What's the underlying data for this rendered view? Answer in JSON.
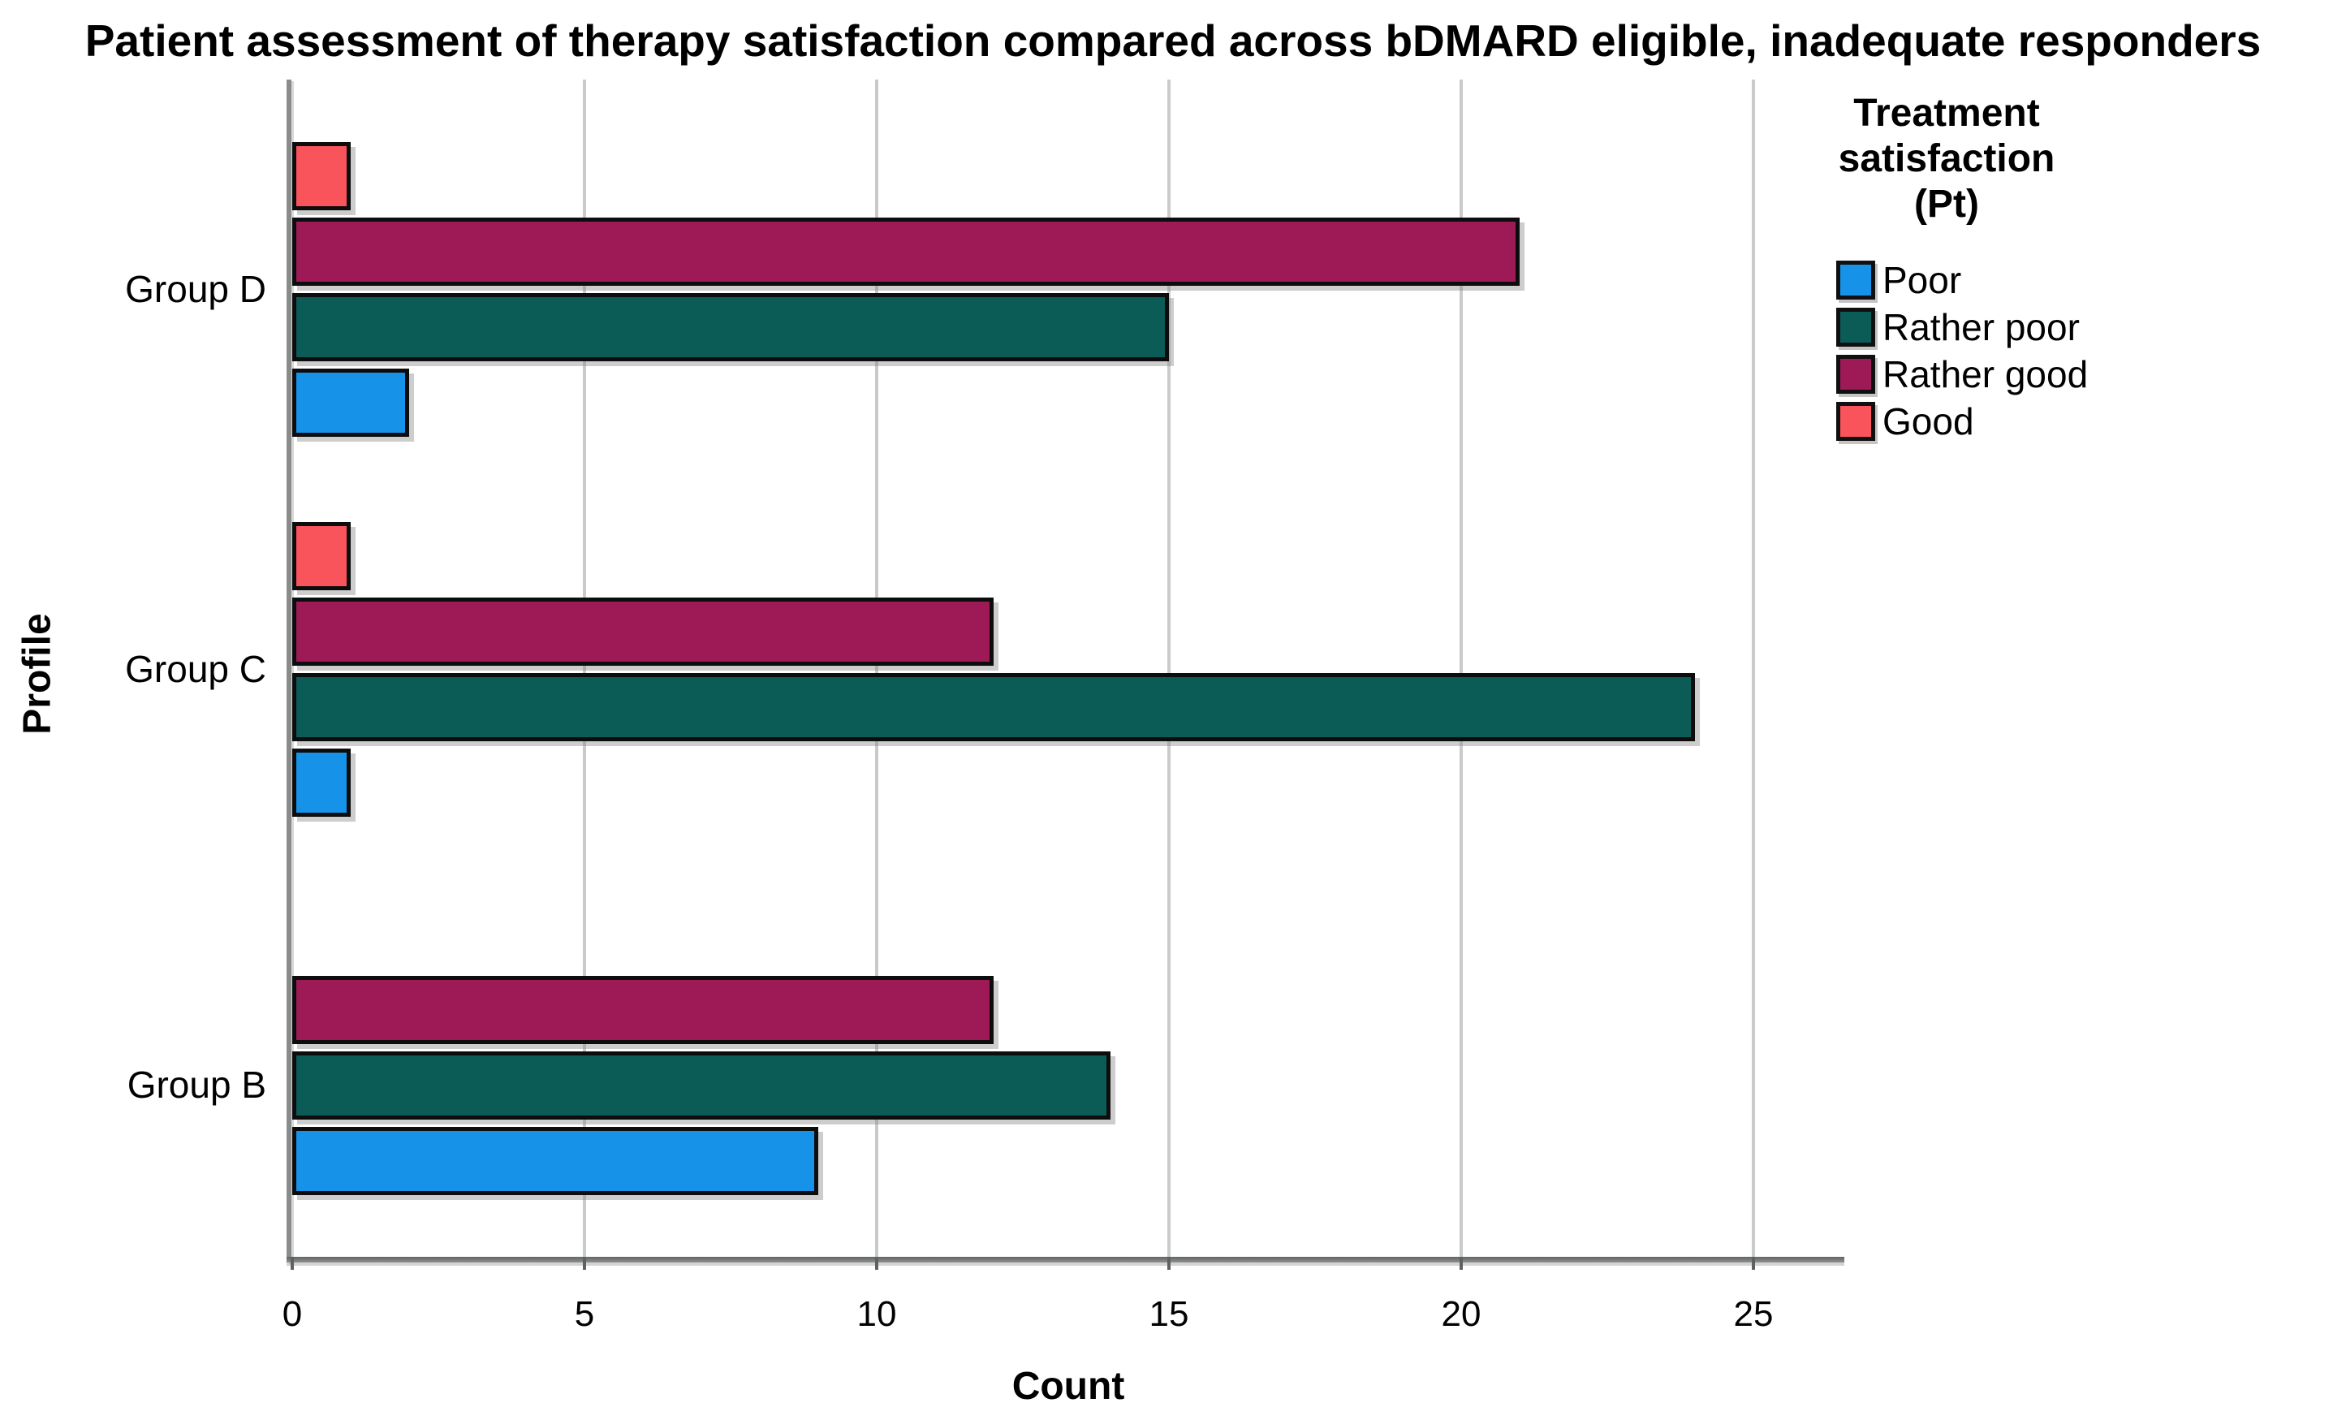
{
  "title": "Patient assessment of therapy satisfaction compared across bDMARD eligible, inadequate responders",
  "legend": {
    "title_lines": [
      "Treatment",
      "satisfaction",
      "(Pt)"
    ]
  },
  "chart_data": {
    "type": "bar",
    "orientation": "horizontal",
    "title": "Patient assessment of therapy satisfaction compared across bDMARD eligible, inadequate responders",
    "xlabel": "Count",
    "ylabel": "Profile",
    "legend_title": "Treatment satisfaction (Pt)",
    "legend_position": "right",
    "grid": true,
    "xlim": [
      0,
      26.5
    ],
    "xticks": [
      0,
      5,
      10,
      15,
      20,
      25
    ],
    "categories": [
      "Group D",
      "Group C",
      "Group B"
    ],
    "series": [
      {
        "name": "Poor",
        "color": "#1693E9",
        "values": [
          2,
          1,
          9
        ]
      },
      {
        "name": "Rather poor",
        "color": "#0B5B57",
        "values": [
          15,
          24,
          14
        ]
      },
      {
        "name": "Rather good",
        "color": "#9E1A56",
        "values": [
          21,
          12,
          12
        ]
      },
      {
        "name": "Good",
        "color": "#F9545C",
        "values": [
          1,
          1,
          0
        ]
      }
    ],
    "bar_order_top_to_bottom": [
      "Good",
      "Rather good",
      "Rather poor",
      "Poor"
    ],
    "colors": {
      "gridline": "#c9cbcb",
      "axis_line": "#707272",
      "bar_border": "#0d0d0d",
      "background": "#ffffff",
      "text": "#000000"
    }
  }
}
